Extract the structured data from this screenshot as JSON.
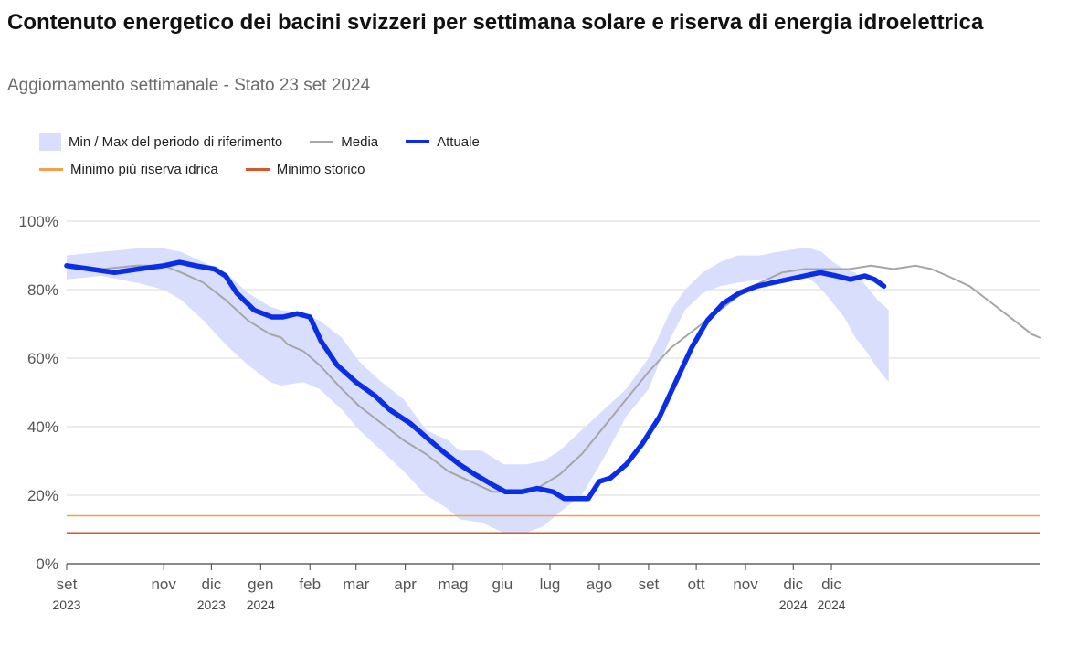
{
  "title": "Contenuto energetico dei bacini svizzeri per settimana solare e riserva di energia idroelettrica",
  "subtitle": "Aggiornamento settimanale - Stato 23 set 2024",
  "legend": {
    "band": "Min / Max del periodo di riferimento",
    "mean": "Media",
    "current": "Attuale",
    "reserve": "Minimo più riserva idrica",
    "histmin": "Minimo storico"
  },
  "colors": {
    "band": "#d8defc",
    "mean": "#a6a6a6",
    "current": "#0a2de6",
    "reserve": "#f4a04a",
    "histmin": "#d9552e",
    "grid": "#d9d9d9"
  },
  "chart_data": {
    "type": "area",
    "x_unit": "date",
    "y_unit": "%",
    "ylim": [
      0,
      100
    ],
    "y_ticks": [
      "0%",
      "20%",
      "40%",
      "60%",
      "80%",
      "100%"
    ],
    "grid": true,
    "legend_placement": "top-left",
    "x_ticks": [
      {
        "date": "2023-09-01",
        "label": "set",
        "year": "2023"
      },
      {
        "date": "2023-11-01",
        "label": "nov",
        "year": ""
      },
      {
        "date": "2023-12-01",
        "label": "dic",
        "year": "2023"
      },
      {
        "date": "2024-01-01",
        "label": "gen",
        "year": "2024"
      },
      {
        "date": "2024-02-01",
        "label": "feb",
        "year": ""
      },
      {
        "date": "2024-03-01",
        "label": "mar",
        "year": ""
      },
      {
        "date": "2024-04-01",
        "label": "apr",
        "year": ""
      },
      {
        "date": "2024-05-01",
        "label": "mag",
        "year": ""
      },
      {
        "date": "2024-06-01",
        "label": "giu",
        "year": ""
      },
      {
        "date": "2024-07-01",
        "label": "lug",
        "year": ""
      },
      {
        "date": "2024-08-01",
        "label": "ago",
        "year": ""
      },
      {
        "date": "2024-09-01",
        "label": "set",
        "year": ""
      },
      {
        "date": "2024-10-01",
        "label": "ott",
        "year": ""
      },
      {
        "date": "2024-11-01",
        "label": "nov",
        "year": ""
      },
      {
        "date": "2024-12-01",
        "label": "dic",
        "year": "2024"
      },
      {
        "date": "2024-12-25",
        "label": "dic",
        "year": "2024"
      }
    ],
    "series": [
      {
        "name": "Min / Max del periodo di riferimento",
        "kind": "band",
        "points": [
          [
            "2023-09-01",
            83,
            90
          ],
          [
            "2023-09-23",
            84,
            91
          ],
          [
            "2023-10-15",
            82,
            92
          ],
          [
            "2023-11-01",
            80,
            92
          ],
          [
            "2023-11-12",
            77,
            91
          ],
          [
            "2023-11-26",
            71,
            88
          ],
          [
            "2023-12-10",
            64,
            85
          ],
          [
            "2023-12-24",
            58,
            79
          ],
          [
            "2024-01-07",
            53,
            75
          ],
          [
            "2024-01-14",
            52,
            74
          ],
          [
            "2024-01-28",
            53,
            73
          ],
          [
            "2024-02-07",
            51,
            71
          ],
          [
            "2024-02-21",
            45,
            66
          ],
          [
            "2024-03-03",
            39,
            59
          ],
          [
            "2024-03-17",
            33,
            53
          ],
          [
            "2024-03-31",
            27,
            48
          ],
          [
            "2024-04-14",
            20,
            39
          ],
          [
            "2024-04-28",
            16,
            36
          ],
          [
            "2024-05-05",
            13,
            33
          ],
          [
            "2024-05-19",
            12,
            33
          ],
          [
            "2024-06-02",
            9,
            29
          ],
          [
            "2024-06-16",
            9,
            29
          ],
          [
            "2024-06-27",
            11,
            30
          ],
          [
            "2024-07-07",
            15,
            33
          ],
          [
            "2024-07-21",
            20,
            39
          ],
          [
            "2024-08-04",
            31,
            45
          ],
          [
            "2024-08-18",
            43,
            51
          ],
          [
            "2024-09-01",
            51,
            60
          ],
          [
            "2024-09-08",
            59,
            67
          ],
          [
            "2024-09-15",
            66,
            74
          ],
          [
            "2024-09-24",
            74,
            80
          ],
          [
            "2024-10-05",
            79,
            85
          ],
          [
            "2024-10-16",
            81,
            88
          ],
          [
            "2024-10-27",
            82,
            90
          ],
          [
            "2024-11-10",
            83,
            90
          ],
          [
            "2024-11-21",
            83,
            91
          ],
          [
            "2024-12-05",
            84,
            92
          ],
          [
            "2024-12-12",
            83,
            92
          ],
          [
            "2024-12-19",
            80,
            91
          ],
          [
            "2024-12-26",
            76,
            88
          ],
          [
            "2025-01-02",
            72,
            86
          ],
          [
            "2025-01-09",
            66,
            85
          ],
          [
            "2025-01-16",
            62,
            81
          ],
          [
            "2025-01-23",
            57,
            77
          ],
          [
            "2025-01-30",
            53,
            74
          ]
        ]
      },
      {
        "name": "Media",
        "kind": "line",
        "points": [
          [
            "2023-09-01",
            87
          ],
          [
            "2023-09-23",
            86
          ],
          [
            "2023-10-15",
            87
          ],
          [
            "2023-11-01",
            87
          ],
          [
            "2023-11-12",
            85
          ],
          [
            "2023-11-26",
            82
          ],
          [
            "2023-12-10",
            77
          ],
          [
            "2023-12-24",
            71
          ],
          [
            "2024-01-07",
            67
          ],
          [
            "2024-01-14",
            66
          ],
          [
            "2024-01-18",
            64
          ],
          [
            "2024-01-28",
            62
          ],
          [
            "2024-02-07",
            58
          ],
          [
            "2024-02-21",
            51
          ],
          [
            "2024-03-03",
            46
          ],
          [
            "2024-03-17",
            41
          ],
          [
            "2024-03-31",
            36
          ],
          [
            "2024-04-14",
            32
          ],
          [
            "2024-04-28",
            27
          ],
          [
            "2024-05-12",
            24
          ],
          [
            "2024-05-26",
            21
          ],
          [
            "2024-06-09",
            21
          ],
          [
            "2024-06-23",
            22
          ],
          [
            "2024-07-07",
            26
          ],
          [
            "2024-07-21",
            32
          ],
          [
            "2024-08-04",
            40
          ],
          [
            "2024-08-18",
            48
          ],
          [
            "2024-09-01",
            56
          ],
          [
            "2024-09-15",
            63
          ],
          [
            "2024-09-29",
            68
          ],
          [
            "2024-10-13",
            73
          ],
          [
            "2024-10-27",
            78
          ],
          [
            "2024-11-10",
            82
          ],
          [
            "2024-11-24",
            85
          ],
          [
            "2024-12-08",
            86
          ],
          [
            "2024-12-22",
            86
          ],
          [
            "2025-01-05",
            86
          ],
          [
            "2025-01-19",
            87
          ],
          [
            "2025-02-02",
            86
          ],
          [
            "2025-02-16",
            87
          ],
          [
            "2025-02-26",
            86
          ],
          [
            "2025-03-08",
            84
          ],
          [
            "2025-03-22",
            81
          ],
          [
            "2025-04-05",
            76
          ],
          [
            "2025-04-19",
            71
          ],
          [
            "2025-04-30",
            67
          ],
          [
            "2025-05-05",
            66
          ]
        ]
      },
      {
        "name": "Attuale",
        "kind": "line",
        "points": [
          [
            "2023-09-01",
            87
          ],
          [
            "2023-09-16",
            86
          ],
          [
            "2023-10-01",
            85
          ],
          [
            "2023-10-16",
            86
          ],
          [
            "2023-11-01",
            87
          ],
          [
            "2023-11-11",
            88
          ],
          [
            "2023-11-21",
            87
          ],
          [
            "2023-12-03",
            86
          ],
          [
            "2023-12-10",
            84
          ],
          [
            "2023-12-17",
            79
          ],
          [
            "2023-12-28",
            74
          ],
          [
            "2024-01-08",
            72
          ],
          [
            "2024-01-15",
            72
          ],
          [
            "2024-01-24",
            73
          ],
          [
            "2024-02-01",
            72
          ],
          [
            "2024-02-08",
            65
          ],
          [
            "2024-02-18",
            58
          ],
          [
            "2024-03-01",
            53
          ],
          [
            "2024-03-13",
            49
          ],
          [
            "2024-03-22",
            45
          ],
          [
            "2024-04-04",
            41
          ],
          [
            "2024-04-14",
            37
          ],
          [
            "2024-04-24",
            33
          ],
          [
            "2024-05-05",
            29
          ],
          [
            "2024-05-15",
            26
          ],
          [
            "2024-05-26",
            23
          ],
          [
            "2024-06-03",
            21
          ],
          [
            "2024-06-13",
            21
          ],
          [
            "2024-06-23",
            22
          ],
          [
            "2024-07-03",
            21
          ],
          [
            "2024-07-10",
            19
          ],
          [
            "2024-07-18",
            19
          ],
          [
            "2024-07-25",
            19
          ],
          [
            "2024-08-01",
            24
          ],
          [
            "2024-08-08",
            25
          ],
          [
            "2024-08-18",
            29
          ],
          [
            "2024-08-28",
            35
          ],
          [
            "2024-09-08",
            43
          ],
          [
            "2024-09-18",
            53
          ],
          [
            "2024-09-28",
            63
          ],
          [
            "2024-10-08",
            71
          ],
          [
            "2024-10-18",
            76
          ],
          [
            "2024-10-28",
            79
          ],
          [
            "2024-11-08",
            81
          ],
          [
            "2024-11-18",
            82
          ],
          [
            "2024-11-28",
            83
          ],
          [
            "2024-12-08",
            84
          ],
          [
            "2024-12-18",
            85
          ],
          [
            "2024-12-28",
            84
          ],
          [
            "2025-01-06",
            83
          ],
          [
            "2025-01-15",
            84
          ],
          [
            "2025-01-21",
            83
          ],
          [
            "2025-01-27",
            81
          ]
        ]
      },
      {
        "name": "Minimo più riserva idrica",
        "kind": "hline",
        "value": 14
      },
      {
        "name": "Minimo storico",
        "kind": "hline",
        "value": 9
      }
    ]
  }
}
